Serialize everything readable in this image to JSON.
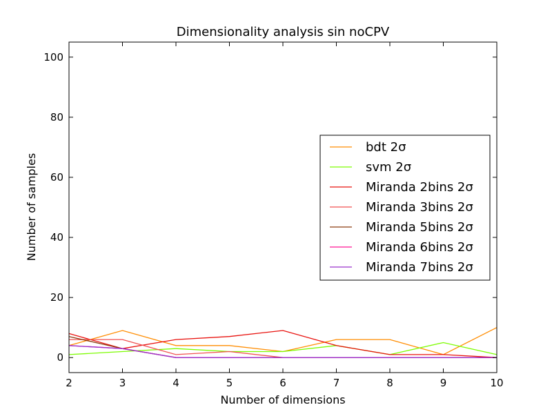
{
  "chart_data": {
    "type": "line",
    "title": "Dimensionality analysis sin noCPV",
    "xlabel": "Number of dimensions",
    "ylabel": "Number of samples",
    "xlim": [
      2,
      10
    ],
    "ylim": [
      -5,
      105
    ],
    "xticks": [
      2,
      3,
      4,
      5,
      6,
      7,
      8,
      9,
      10
    ],
    "yticks": [
      0,
      20,
      40,
      60,
      80,
      100
    ],
    "grid": false,
    "legend_position": "center-right",
    "x": [
      2,
      3,
      4,
      5,
      6,
      7,
      8,
      9,
      10
    ],
    "series": [
      {
        "name": "bdt 2σ",
        "color": "#ff8c00",
        "values": [
          4,
          9,
          4,
          4,
          2,
          6,
          6,
          1,
          10
        ]
      },
      {
        "name": "svm 2σ",
        "color": "#7cfc00",
        "values": [
          1,
          2,
          3,
          2,
          2,
          4,
          1,
          5,
          1
        ]
      },
      {
        "name": "Miranda 2bins 2σ",
        "color": "#e8100c",
        "values": [
          8,
          3,
          6,
          7,
          9,
          4,
          1,
          1,
          0
        ]
      },
      {
        "name": "Miranda 3bins 2σ",
        "color": "#f04f4f",
        "values": [
          6,
          6,
          1,
          2,
          0,
          0,
          0,
          0,
          0
        ]
      },
      {
        "name": "Miranda 5bins 2σ",
        "color": "#8b3a0f",
        "values": [
          7,
          3,
          0,
          0,
          0,
          0,
          0,
          0,
          0
        ]
      },
      {
        "name": "Miranda 6bins 2σ",
        "color": "#ff1493",
        "values": [
          4,
          3,
          0,
          0,
          0,
          0,
          0,
          0,
          0
        ]
      },
      {
        "name": "Miranda 7bins 2σ",
        "color": "#9932cc",
        "values": [
          4,
          3,
          0,
          0,
          0,
          0,
          0,
          0,
          0
        ]
      }
    ]
  }
}
